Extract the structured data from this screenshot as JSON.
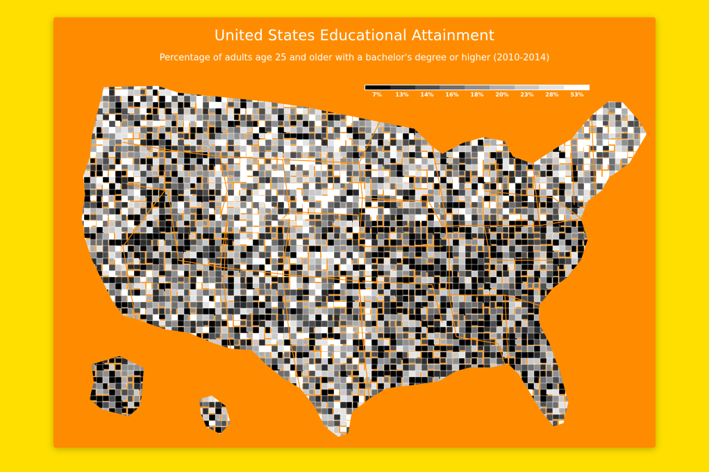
{
  "map": {
    "title": "United States Educational Attainment",
    "subtitle": "Percentage of adults age 25 and older with a bachelor's degree or higher (2010-2014)",
    "legend": {
      "labels": [
        "7%",
        "13%",
        "14%",
        "16%",
        "18%",
        "20%",
        "23%",
        "28%",
        "53%"
      ],
      "colors": [
        "#000000",
        "#2b2b2b",
        "#4d4d4d",
        "#6e6e6e",
        "#8f8f8f",
        "#adadad",
        "#c9c9c9",
        "#e3e3e3",
        "#ffffff"
      ]
    },
    "colors": {
      "page_background": "#ffdf00",
      "card_background": "#ff8c00",
      "state_border": "#ff8c00",
      "county_border": "#ffffff"
    }
  }
}
